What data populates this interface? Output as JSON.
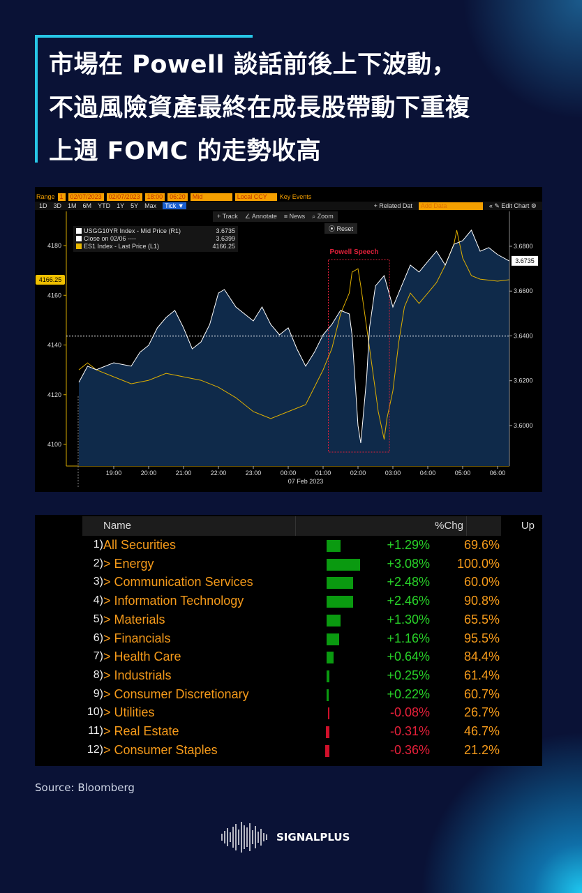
{
  "title": {
    "lines": [
      "市場在 Powell 談話前後上下波動，",
      "不過風險資產最終在成長股帶動下重複",
      "上週 FOMC 的走勢收高"
    ]
  },
  "toolbar": {
    "range": "Range",
    "range_n": "1",
    "date_from": "02/07/2023",
    "date_to": "02/07/2023",
    "time_from": "18:00",
    "time_to": "06:20",
    "mid": "Mid",
    "ccy": "Local CCY",
    "key_events": "Key Events",
    "periods": [
      "1D",
      "3D",
      "1M",
      "6M",
      "YTD",
      "1Y",
      "5Y",
      "Max"
    ],
    "tick": "Tick ▼",
    "related": "+ Related Dat",
    "add_data": "Add Data",
    "edit_chart": "« ✎ Edit Chart ⚙",
    "track": "+ Track",
    "annotate": "∠ Annotate",
    "news": "≡ News",
    "zoom": "⌕ Zoom",
    "reset": "⦿ Reset"
  },
  "colors": {
    "yield": "#ffffff",
    "es": "#e0b000",
    "fill": "#0f2a4a",
    "annotation": "#e0203a"
  },
  "chart_data": {
    "type": "line",
    "title": "",
    "x_unit": "hours since 18:00, 06 Feb 2023",
    "xticks": [
      "19:00",
      "20:00",
      "21:00",
      "22:00",
      "23:00",
      "00:00",
      "01:00",
      "02:00",
      "03:00",
      "04:00",
      "05:00",
      "06:00"
    ],
    "xlabel": "07 Feb 2023",
    "left_axis": {
      "label": "ES1",
      "ticks": [
        "4100",
        "4120",
        "4140",
        "4160",
        "4180"
      ],
      "range": [
        4096,
        4192
      ],
      "current": "4166.25"
    },
    "right_axis": {
      "label": "USGG10YR",
      "ticks": [
        "3.6000",
        "3.6200",
        "3.6400",
        "3.6600",
        "3.6800"
      ],
      "range": [
        3.587,
        3.7
      ],
      "current": "3.6735"
    },
    "reference_line": {
      "name": "Close on 02/06",
      "value": 3.6399
    },
    "annotation": {
      "label": "Powell Speech",
      "x_range": [
        7.15,
        8.9
      ]
    },
    "legend": [
      {
        "name": "USGG10YR Index - Mid Price (R1)",
        "value": "3.6735"
      },
      {
        "name": "Close on 02/06 ----",
        "value": "3.6399"
      },
      {
        "name": "ES1 Index - Last Price (L1)",
        "value": "4166.25"
      }
    ],
    "series": [
      {
        "name": "USGG10YR",
        "axis": "right",
        "x": [
          0,
          0.25,
          0.5,
          1,
          1.5,
          1.75,
          2,
          2.25,
          2.5,
          2.75,
          3,
          3.25,
          3.5,
          3.75,
          4,
          4.17,
          4.5,
          5,
          5.25,
          5.5,
          5.75,
          6,
          6.25,
          6.5,
          6.75,
          7,
          7.25,
          7.5,
          7.75,
          7.83,
          8,
          8.08,
          8.25,
          8.33,
          8.5,
          8.75,
          9,
          9.25,
          9.5,
          9.75,
          10,
          10.25,
          10.5,
          10.75,
          11,
          11.25,
          11.5,
          11.75,
          12,
          12.33
        ],
        "values": [
          3.6193,
          3.6265,
          3.6249,
          3.628,
          3.6265,
          3.6327,
          3.6358,
          3.6436,
          3.6482,
          3.6514,
          3.6436,
          3.6342,
          3.6373,
          3.6451,
          3.6591,
          3.6607,
          3.6529,
          3.6467,
          3.6529,
          3.6451,
          3.6405,
          3.6436,
          3.6342,
          3.6265,
          3.6327,
          3.6405,
          3.6451,
          3.6514,
          3.6498,
          3.6405,
          3.6,
          3.5922,
          3.6218,
          3.6436,
          3.6623,
          3.6669,
          3.6529,
          3.6623,
          3.6716,
          3.6685,
          3.6732,
          3.6778,
          3.6716,
          3.6809,
          3.6825,
          3.6872,
          3.6778,
          3.6794,
          3.6763,
          3.6735
        ]
      },
      {
        "name": "ES1",
        "axis": "left",
        "x": [
          0,
          0.25,
          0.5,
          1,
          1.5,
          2,
          2.5,
          3,
          3.5,
          4,
          4.5,
          5,
          5.5,
          6,
          6.5,
          7,
          7.25,
          7.5,
          7.75,
          7.83,
          8,
          8.08,
          8.25,
          8.5,
          8.58,
          8.75,
          8.83,
          9,
          9.17,
          9.33,
          9.5,
          9.75,
          10,
          10.25,
          10.5,
          10.75,
          10.83,
          11,
          11.25,
          11.5,
          12,
          12.33
        ],
        "values": [
          4130,
          4132.8,
          4130,
          4127.2,
          4124.4,
          4125.8,
          4128.6,
          4127.2,
          4125.8,
          4123,
          4118.8,
          4113.2,
          4110.4,
          4113.2,
          4116,
          4130,
          4138.5,
          4152.5,
          4160.9,
          4169.3,
          4170.7,
          4163.7,
          4146.9,
          4121.6,
          4113.2,
          4102,
          4110.4,
          4121.6,
          4141.3,
          4155.3,
          4160.9,
          4156.7,
          4160.9,
          4165.1,
          4172.1,
          4180.6,
          4186.2,
          4175,
          4167.9,
          4166.5,
          4165.7,
          4166.25
        ]
      }
    ]
  },
  "table": {
    "headers": {
      "name": "Name",
      "chg": "%Chg",
      "up": "Up"
    },
    "rows": [
      {
        "idx": "1)",
        "name": "All Securities",
        "chg": "+1.29%",
        "chg_value": 1.29,
        "up": "69.6%"
      },
      {
        "idx": "2)",
        "name": "> Energy",
        "chg": "+3.08%",
        "chg_value": 3.08,
        "up": "100.0%"
      },
      {
        "idx": "3)",
        "name": "> Communication Services",
        "chg": "+2.48%",
        "chg_value": 2.48,
        "up": "60.0%"
      },
      {
        "idx": "4)",
        "name": "> Information Technology",
        "chg": "+2.46%",
        "chg_value": 2.46,
        "up": "90.8%"
      },
      {
        "idx": "5)",
        "name": "> Materials",
        "chg": "+1.30%",
        "chg_value": 1.3,
        "up": "65.5%"
      },
      {
        "idx": "6)",
        "name": "> Financials",
        "chg": "+1.16%",
        "chg_value": 1.16,
        "up": "95.5%"
      },
      {
        "idx": "7)",
        "name": "> Health Care",
        "chg": "+0.64%",
        "chg_value": 0.64,
        "up": "84.4%"
      },
      {
        "idx": "8)",
        "name": "> Industrials",
        "chg": "+0.25%",
        "chg_value": 0.25,
        "up": "61.4%"
      },
      {
        "idx": "9)",
        "name": "> Consumer Discretionary",
        "chg": "+0.22%",
        "chg_value": 0.22,
        "up": "60.7%"
      },
      {
        "idx": "10)",
        "name": "> Utilities",
        "chg": "-0.08%",
        "chg_value": -0.08,
        "up": "26.7%"
      },
      {
        "idx": "11)",
        "name": "> Real Estate",
        "chg": "-0.31%",
        "chg_value": -0.31,
        "up": "46.7%"
      },
      {
        "idx": "12)",
        "name": "> Consumer Staples",
        "chg": "-0.36%",
        "chg_value": -0.36,
        "up": "21.2%"
      }
    ]
  },
  "source": "Source:  Bloomberg",
  "brand": "SIGNALPLUS"
}
